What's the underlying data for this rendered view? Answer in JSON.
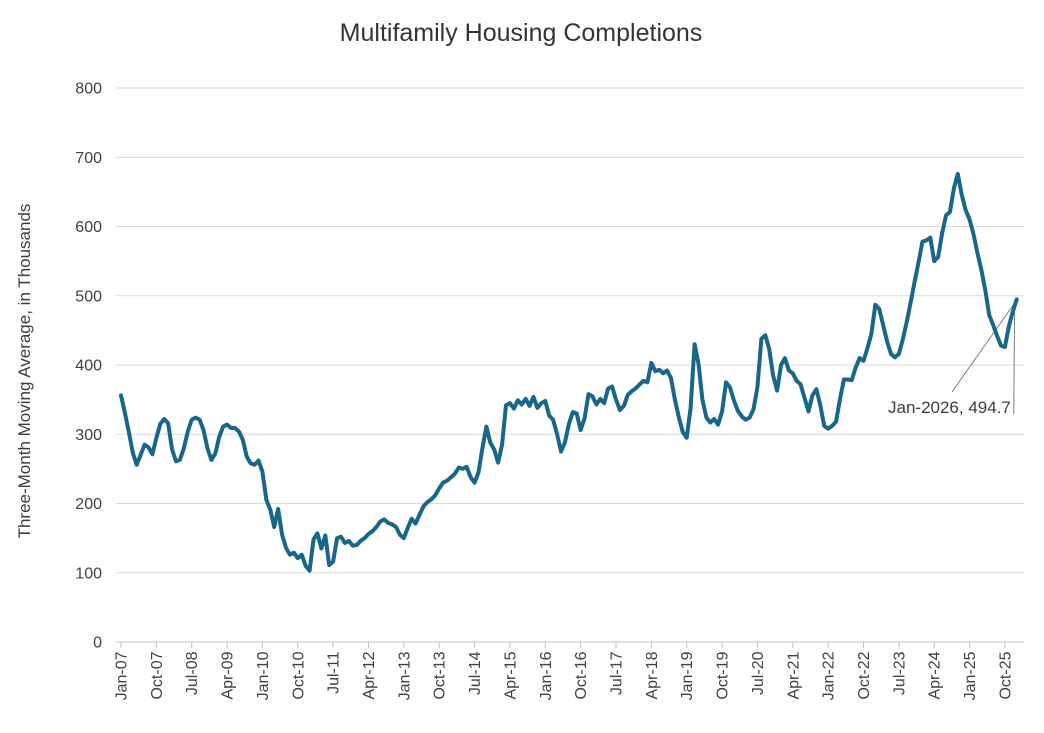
{
  "chart_data": {
    "type": "line",
    "title": "Multifamily Housing Completions",
    "ylabel": "Three-Month Moving Average, in Thousands",
    "xlabel": "",
    "ylim": [
      0,
      800
    ],
    "y_ticks": [
      0,
      100,
      200,
      300,
      400,
      500,
      600,
      700,
      800
    ],
    "x_tick_labels": [
      "Jan-07",
      "Oct-07",
      "Jul-08",
      "Apr-09",
      "Jan-10",
      "Oct-10",
      "Jul-11",
      "Apr-12",
      "Jan-13",
      "Oct-13",
      "Jul-14",
      "Apr-15",
      "Jan-16",
      "Oct-16",
      "Jul-17",
      "Apr-18",
      "Jan-19",
      "Oct-19",
      "Jul-20",
      "Apr-21",
      "Jan-22",
      "Oct-22",
      "Jul-23",
      "Apr-24",
      "Jan-25",
      "Oct-25"
    ],
    "x_start": "Jan-2007",
    "x_end": "Jan-2026",
    "x_frequency": "monthly",
    "tick_interval_months": 9,
    "grid": "horizontal",
    "legend": "none",
    "series": [
      {
        "name": "Multifamily housing completions, three-month moving average (thousands)",
        "values": [
          356,
          331,
          303,
          273,
          256,
          270,
          285,
          281,
          271,
          295,
          315,
          322,
          316,
          278,
          261,
          263,
          280,
          304,
          321,
          324,
          321,
          306,
          280,
          263,
          272,
          296,
          311,
          314,
          309,
          309,
          304,
          292,
          268,
          258,
          256,
          262,
          246,
          205,
          191,
          166,
          192,
          155,
          136,
          126,
          129,
          121,
          126,
          110,
          103,
          148,
          157,
          135,
          154,
          111,
          116,
          150,
          152,
          143,
          146,
          139,
          140,
          146,
          150,
          156,
          160,
          166,
          174,
          177,
          172,
          170,
          166,
          155,
          150,
          165,
          178,
          171,
          184,
          196,
          202,
          206,
          212,
          222,
          230,
          233,
          238,
          243,
          252,
          250,
          253,
          238,
          230,
          245,
          280,
          311,
          288,
          278,
          259,
          285,
          342,
          345,
          337,
          349,
          343,
          351,
          341,
          354,
          338,
          345,
          348,
          327,
          321,
          300,
          275,
          288,
          315,
          332,
          330,
          306,
          323,
          358,
          355,
          343,
          351,
          345,
          366,
          369,
          350,
          335,
          341,
          357,
          362,
          366,
          372,
          377,
          375,
          403,
          391,
          393,
          388,
          392,
          381,
          350,
          324,
          303,
          295,
          338,
          430,
          402,
          350,
          324,
          317,
          322,
          314,
          333,
          375,
          368,
          349,
          334,
          326,
          321,
          324,
          336,
          368,
          438,
          443,
          423,
          385,
          363,
          400,
          410,
          392,
          388,
          377,
          372,
          352,
          333,
          356,
          365,
          342,
          312,
          308,
          312,
          318,
          350,
          379,
          379,
          378,
          396,
          410,
          406,
          424,
          445,
          487,
          481,
          458,
          434,
          416,
          411,
          416,
          437,
          462,
          490,
          520,
          548,
          578,
          580,
          584,
          550,
          556,
          590,
          616,
          621,
          655,
          676,
          646,
          624,
          610,
          589,
          562,
          537,
          508,
          472,
          458,
          442,
          428,
          426,
          456,
          477,
          494.7
        ]
      }
    ],
    "annotation": {
      "label": "Jan-2026, 494.7",
      "x": "Jan-2026",
      "y": 494.7
    },
    "colors": {
      "line": "#186689",
      "gridline": "#d9d9d9",
      "axis": "#bfbfbf",
      "text": "#404040",
      "leader": "#7f7f7f"
    }
  }
}
